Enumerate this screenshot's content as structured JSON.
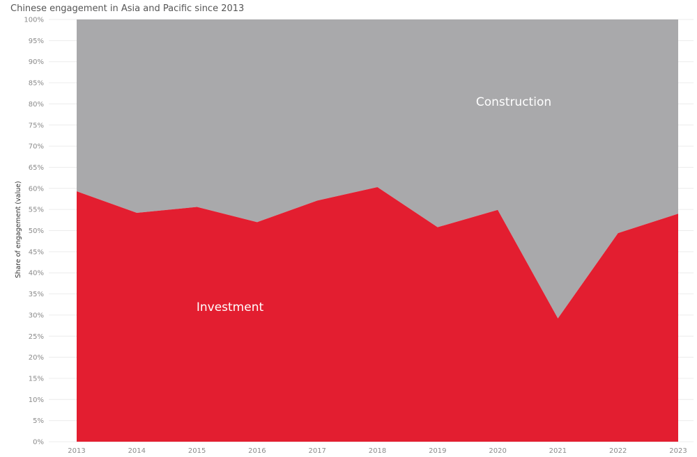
{
  "title": "Chinese engagement in Asia and Pacific since 2013",
  "chart_data": {
    "type": "area",
    "stacked": "percent",
    "x": [
      "2013",
      "2014",
      "2015",
      "2016",
      "2017",
      "2018",
      "2019",
      "2020",
      "2021",
      "2022",
      "2023"
    ],
    "series": [
      {
        "name": "Investment",
        "color": "#e31e30",
        "values": [
          59.3,
          54.2,
          55.6,
          52.0,
          57.1,
          60.3,
          50.8,
          54.9,
          29.2,
          49.4,
          54.0
        ]
      },
      {
        "name": "Construction",
        "color": "#a9a9ab",
        "values": [
          40.7,
          45.8,
          44.4,
          48.0,
          42.9,
          39.7,
          49.2,
          45.1,
          70.8,
          50.6,
          46.0
        ]
      }
    ],
    "ylabel": "Share of engagement (value)",
    "yticks": [
      "0%",
      "5%",
      "10%",
      "15%",
      "20%",
      "25%",
      "30%",
      "35%",
      "40%",
      "45%",
      "50%",
      "55%",
      "60%",
      "65%",
      "70%",
      "75%",
      "80%",
      "85%",
      "90%",
      "95%",
      "100%"
    ],
    "ylim": [
      0,
      100
    ],
    "grid": true
  }
}
